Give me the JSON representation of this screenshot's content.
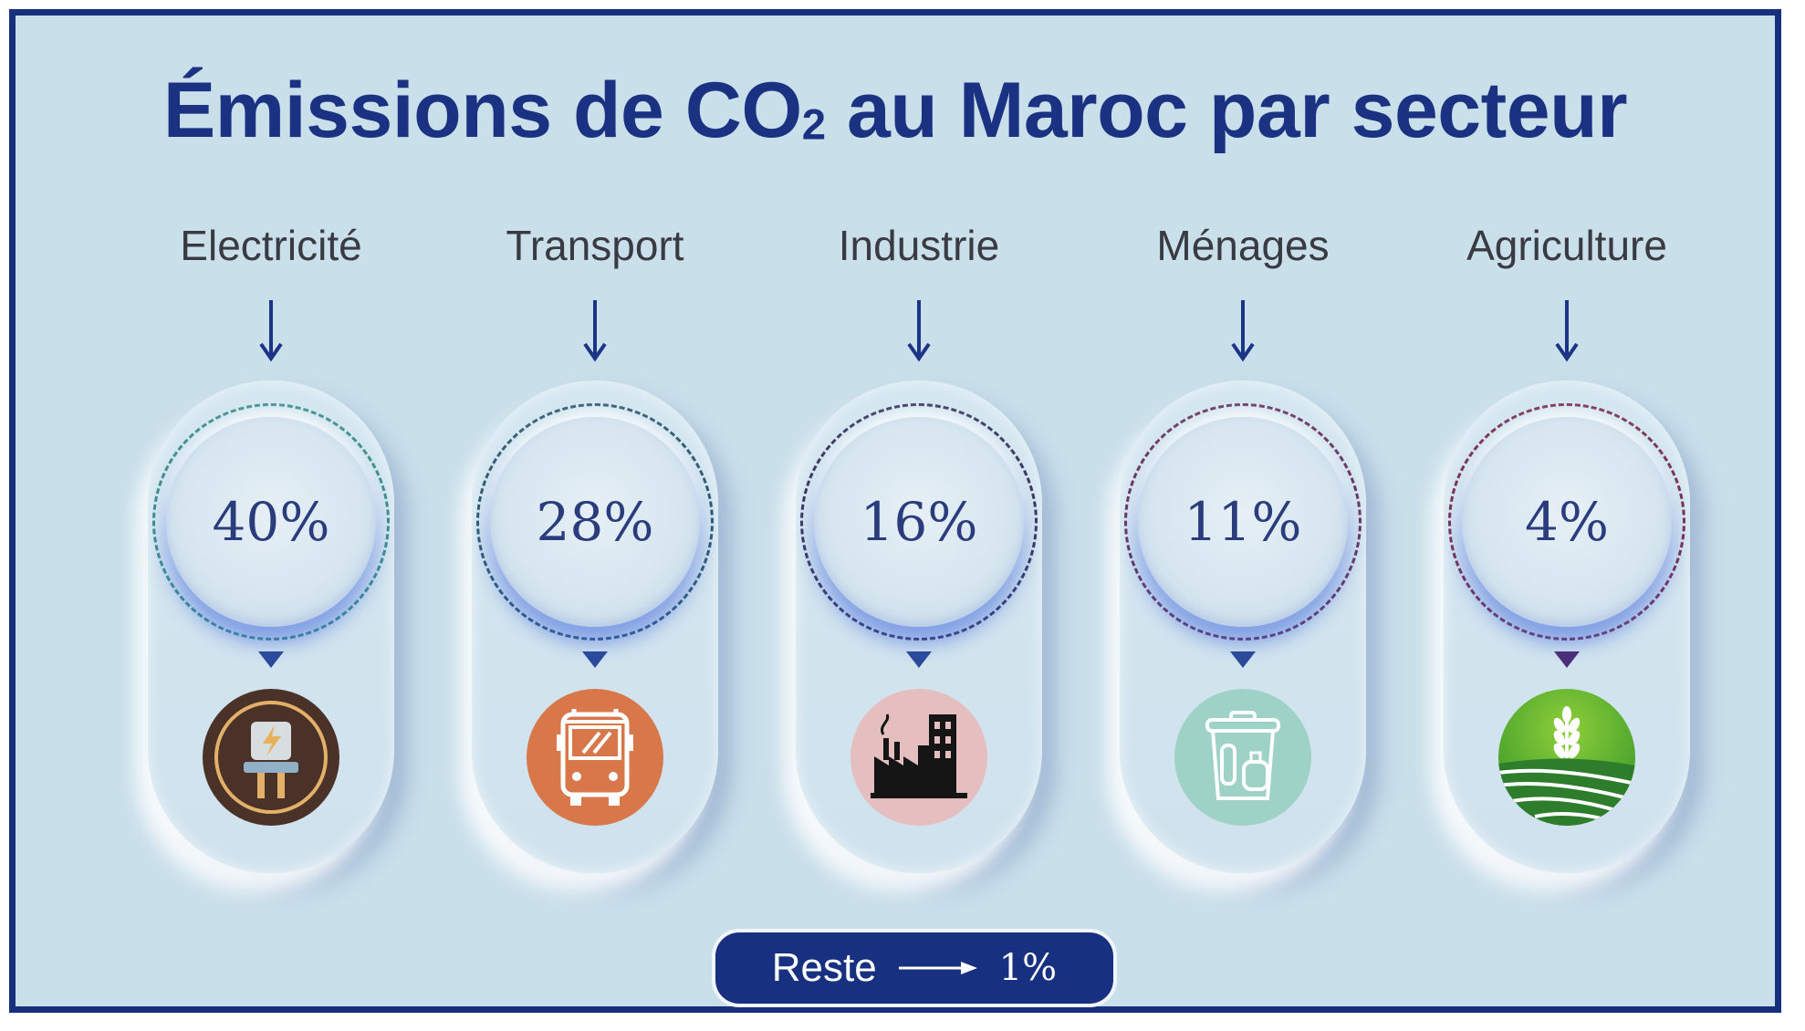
{
  "title": {
    "main": "Émissions de CO",
    "sub": "2",
    "rest": " au Maroc par secteur"
  },
  "sectors": [
    {
      "label": "Electricité",
      "value": "40%",
      "ring_color": "#3c8f8c",
      "icon": "electric-plug-icon"
    },
    {
      "label": "Transport",
      "value": "28%",
      "ring_color": "#2d5a74",
      "icon": "bus-icon"
    },
    {
      "label": "Industrie",
      "value": "16%",
      "ring_color": "#3a3660",
      "icon": "factory-icon"
    },
    {
      "label": "Ménages",
      "value": "11%",
      "ring_color": "#6a3560",
      "icon": "trash-bin-icon"
    },
    {
      "label": "Agriculture",
      "value": "4%",
      "ring_color": "#7a3052",
      "icon": "wheat-field-icon"
    }
  ],
  "rest": {
    "label": "Reste",
    "value": "1%"
  },
  "colors": {
    "background": "#c9dfea",
    "navy": "#16307e"
  }
}
